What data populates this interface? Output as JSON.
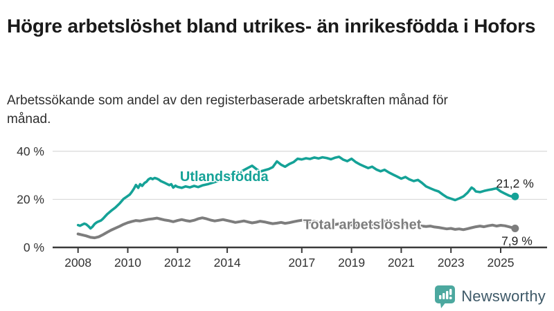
{
  "header": {
    "title": "Högre arbetslöshet bland utrikes- än inrikesfödda i Hofors",
    "subtitle": "Arbetssökande som andel av den registerbaserade arbetskraften månad för månad."
  },
  "footer": {
    "brand": "Newsworthy",
    "brand_icon": "bar-chart-speech-bubble"
  },
  "colors": {
    "accent_teal": "#15a297",
    "line_gray": "#7d7d7d",
    "axis": "#3a3a3a",
    "grid": "#d9d9d9",
    "text": "#222222",
    "brand_text": "#3e5968",
    "brand_icon": "#4ca89f"
  },
  "chart_data": {
    "type": "line",
    "title": "Högre arbetslöshet bland utrikes- än inrikesfödda i Hofors",
    "subtitle": "Arbetssökande som andel av den registerbaserade arbetskraften månad för månad.",
    "unit": "%",
    "xlim": [
      2007.6,
      2026.4
    ],
    "ylim": [
      0,
      44
    ],
    "grid": "horizontal-only",
    "legend_position": "inline-labels",
    "y_ticks": [
      [
        0,
        "0 %"
      ],
      [
        20,
        "20 %"
      ],
      [
        40,
        "40 %"
      ]
    ],
    "x_ticks": [
      [
        2008,
        "2008"
      ],
      [
        2010,
        "2010"
      ],
      [
        2012,
        "2012"
      ],
      [
        2014,
        "2014"
      ],
      [
        2017,
        "2017"
      ],
      [
        2019,
        "2019"
      ],
      [
        2021,
        "2021"
      ],
      [
        2023,
        "2023"
      ],
      [
        2025,
        "2025"
      ]
    ],
    "series": [
      {
        "name": "Utlandsfödda",
        "color": "#15a297",
        "end_value": 21.2,
        "end_label": "21,2 %",
        "label_pos": [
          2012.1,
          27.6
        ],
        "end_label_offset": [
          27,
          -13
        ],
        "points": [
          [
            2008.0,
            9.3
          ],
          [
            2008.08,
            9.0
          ],
          [
            2008.17,
            9.5
          ],
          [
            2008.25,
            9.9
          ],
          [
            2008.33,
            9.6
          ],
          [
            2008.42,
            8.8
          ],
          [
            2008.5,
            7.9
          ],
          [
            2008.58,
            8.6
          ],
          [
            2008.67,
            9.8
          ],
          [
            2008.75,
            10.4
          ],
          [
            2008.83,
            10.8
          ],
          [
            2008.92,
            11.2
          ],
          [
            2009.0,
            11.9
          ],
          [
            2009.17,
            13.8
          ],
          [
            2009.33,
            15.2
          ],
          [
            2009.5,
            16.6
          ],
          [
            2009.67,
            18.3
          ],
          [
            2009.83,
            20.2
          ],
          [
            2010.0,
            21.4
          ],
          [
            2010.08,
            22.0
          ],
          [
            2010.17,
            23.2
          ],
          [
            2010.25,
            24.5
          ],
          [
            2010.33,
            26.0
          ],
          [
            2010.42,
            24.8
          ],
          [
            2010.5,
            26.3
          ],
          [
            2010.58,
            25.6
          ],
          [
            2010.67,
            26.8
          ],
          [
            2010.75,
            27.3
          ],
          [
            2010.83,
            28.3
          ],
          [
            2010.92,
            28.8
          ],
          [
            2011.0,
            28.4
          ],
          [
            2011.08,
            28.9
          ],
          [
            2011.17,
            28.6
          ],
          [
            2011.25,
            28.2
          ],
          [
            2011.33,
            27.6
          ],
          [
            2011.5,
            26.8
          ],
          [
            2011.67,
            25.9
          ],
          [
            2011.75,
            26.3
          ],
          [
            2011.83,
            24.9
          ],
          [
            2011.92,
            25.7
          ],
          [
            2012.0,
            25.2
          ],
          [
            2012.17,
            24.8
          ],
          [
            2012.33,
            25.4
          ],
          [
            2012.5,
            25.0
          ],
          [
            2012.67,
            25.6
          ],
          [
            2012.83,
            25.1
          ],
          [
            2013.0,
            25.8
          ],
          [
            2013.25,
            26.4
          ],
          [
            2013.5,
            27.2
          ],
          [
            2013.75,
            28.1
          ],
          [
            2014.0,
            29.0
          ],
          [
            2014.25,
            30.2
          ],
          [
            2014.5,
            31.2
          ],
          [
            2014.75,
            32.6
          ],
          [
            2015.0,
            34.0
          ],
          [
            2015.17,
            32.6
          ],
          [
            2015.33,
            31.6
          ],
          [
            2015.5,
            32.1
          ],
          [
            2015.67,
            32.6
          ],
          [
            2015.83,
            33.4
          ],
          [
            2016.0,
            35.8
          ],
          [
            2016.17,
            34.4
          ],
          [
            2016.33,
            33.6
          ],
          [
            2016.5,
            34.7
          ],
          [
            2016.67,
            35.5
          ],
          [
            2016.83,
            36.9
          ],
          [
            2017.0,
            36.6
          ],
          [
            2017.17,
            37.1
          ],
          [
            2017.33,
            36.8
          ],
          [
            2017.5,
            37.4
          ],
          [
            2017.67,
            37.0
          ],
          [
            2017.83,
            37.5
          ],
          [
            2018.0,
            37.2
          ],
          [
            2018.17,
            36.7
          ],
          [
            2018.33,
            37.3
          ],
          [
            2018.5,
            37.7
          ],
          [
            2018.67,
            36.5
          ],
          [
            2018.83,
            35.9
          ],
          [
            2019.0,
            36.9
          ],
          [
            2019.17,
            35.5
          ],
          [
            2019.33,
            34.6
          ],
          [
            2019.5,
            33.8
          ],
          [
            2019.67,
            33.0
          ],
          [
            2019.83,
            33.6
          ],
          [
            2020.0,
            32.4
          ],
          [
            2020.17,
            31.7
          ],
          [
            2020.33,
            32.3
          ],
          [
            2020.5,
            31.2
          ],
          [
            2020.67,
            30.3
          ],
          [
            2020.83,
            29.5
          ],
          [
            2021.0,
            28.6
          ],
          [
            2021.17,
            29.3
          ],
          [
            2021.33,
            28.3
          ],
          [
            2021.5,
            27.6
          ],
          [
            2021.67,
            28.1
          ],
          [
            2021.83,
            26.9
          ],
          [
            2022.0,
            25.4
          ],
          [
            2022.17,
            24.6
          ],
          [
            2022.33,
            23.9
          ],
          [
            2022.5,
            23.3
          ],
          [
            2022.67,
            22.0
          ],
          [
            2022.83,
            20.9
          ],
          [
            2023.0,
            20.3
          ],
          [
            2023.17,
            19.7
          ],
          [
            2023.33,
            20.4
          ],
          [
            2023.5,
            21.2
          ],
          [
            2023.67,
            22.8
          ],
          [
            2023.83,
            24.9
          ],
          [
            2023.92,
            24.3
          ],
          [
            2024.0,
            23.3
          ],
          [
            2024.17,
            23.0
          ],
          [
            2024.33,
            23.5
          ],
          [
            2024.5,
            23.9
          ],
          [
            2024.67,
            24.2
          ],
          [
            2024.83,
            24.6
          ],
          [
            2025.0,
            23.3
          ],
          [
            2025.17,
            22.4
          ],
          [
            2025.33,
            21.6
          ],
          [
            2025.5,
            21.0
          ],
          [
            2025.58,
            21.2
          ]
        ]
      },
      {
        "name": "Total arbetslöshet",
        "color": "#7d7d7d",
        "end_value": 7.9,
        "end_label": "7,9 %",
        "label_pos": [
          2017.05,
          7.6
        ],
        "end_label_offset": [
          25,
          24
        ],
        "points": [
          [
            2008.0,
            5.6
          ],
          [
            2008.17,
            5.2
          ],
          [
            2008.33,
            4.8
          ],
          [
            2008.5,
            4.2
          ],
          [
            2008.67,
            4.0
          ],
          [
            2008.83,
            4.4
          ],
          [
            2009.0,
            5.3
          ],
          [
            2009.17,
            6.3
          ],
          [
            2009.33,
            7.2
          ],
          [
            2009.5,
            8.0
          ],
          [
            2009.67,
            8.8
          ],
          [
            2009.83,
            9.6
          ],
          [
            2010.0,
            10.3
          ],
          [
            2010.17,
            10.8
          ],
          [
            2010.33,
            11.2
          ],
          [
            2010.5,
            11.0
          ],
          [
            2010.67,
            11.4
          ],
          [
            2010.83,
            11.7
          ],
          [
            2011.0,
            11.9
          ],
          [
            2011.17,
            12.2
          ],
          [
            2011.33,
            11.8
          ],
          [
            2011.5,
            11.4
          ],
          [
            2011.67,
            11.1
          ],
          [
            2011.83,
            10.7
          ],
          [
            2012.0,
            11.2
          ],
          [
            2012.17,
            11.6
          ],
          [
            2012.33,
            11.2
          ],
          [
            2012.5,
            10.9
          ],
          [
            2012.67,
            11.3
          ],
          [
            2012.83,
            11.9
          ],
          [
            2013.0,
            12.3
          ],
          [
            2013.17,
            11.9
          ],
          [
            2013.33,
            11.4
          ],
          [
            2013.5,
            11.0
          ],
          [
            2013.67,
            11.3
          ],
          [
            2013.83,
            11.6
          ],
          [
            2014.0,
            11.2
          ],
          [
            2014.17,
            10.8
          ],
          [
            2014.33,
            10.4
          ],
          [
            2014.5,
            10.7
          ],
          [
            2014.67,
            11.0
          ],
          [
            2014.83,
            10.6
          ],
          [
            2015.0,
            10.2
          ],
          [
            2015.17,
            10.5
          ],
          [
            2015.33,
            10.9
          ],
          [
            2015.5,
            10.6
          ],
          [
            2015.67,
            10.2
          ],
          [
            2015.83,
            9.9
          ],
          [
            2016.0,
            10.1
          ],
          [
            2016.17,
            10.4
          ],
          [
            2016.33,
            10.0
          ],
          [
            2016.5,
            10.3
          ],
          [
            2016.67,
            10.7
          ],
          [
            2016.83,
            11.0
          ],
          [
            2017.0,
            11.3
          ],
          [
            2017.17,
            10.9
          ],
          [
            2017.33,
            10.5
          ],
          [
            2017.5,
            10.8
          ],
          [
            2017.67,
            10.4
          ],
          [
            2017.83,
            10.0
          ],
          [
            2018.0,
            10.2
          ],
          [
            2018.17,
            9.8
          ],
          [
            2018.33,
            9.5
          ],
          [
            2018.5,
            9.8
          ],
          [
            2018.67,
            9.4
          ],
          [
            2018.83,
            9.1
          ],
          [
            2019.0,
            9.4
          ],
          [
            2019.17,
            9.0
          ],
          [
            2019.33,
            9.3
          ],
          [
            2019.5,
            9.6
          ],
          [
            2019.67,
            9.2
          ],
          [
            2019.83,
            9.5
          ],
          [
            2020.0,
            9.8
          ],
          [
            2020.17,
            10.4
          ],
          [
            2020.33,
            10.9
          ],
          [
            2020.5,
            10.6
          ],
          [
            2020.67,
            10.2
          ],
          [
            2020.83,
            9.9
          ],
          [
            2021.0,
            10.1
          ],
          [
            2021.17,
            9.7
          ],
          [
            2021.33,
            9.4
          ],
          [
            2021.5,
            9.6
          ],
          [
            2021.67,
            9.2
          ],
          [
            2021.83,
            8.9
          ],
          [
            2022.0,
            8.7
          ],
          [
            2022.17,
            8.9
          ],
          [
            2022.33,
            8.5
          ],
          [
            2022.5,
            8.3
          ],
          [
            2022.67,
            8.0
          ],
          [
            2022.83,
            7.7
          ],
          [
            2023.0,
            7.9
          ],
          [
            2023.17,
            7.5
          ],
          [
            2023.33,
            7.7
          ],
          [
            2023.5,
            7.4
          ],
          [
            2023.67,
            7.8
          ],
          [
            2023.83,
            8.2
          ],
          [
            2024.0,
            8.6
          ],
          [
            2024.17,
            8.9
          ],
          [
            2024.33,
            8.6
          ],
          [
            2024.5,
            9.0
          ],
          [
            2024.67,
            9.3
          ],
          [
            2024.83,
            8.9
          ],
          [
            2025.0,
            9.2
          ],
          [
            2025.17,
            9.0
          ],
          [
            2025.33,
            8.6
          ],
          [
            2025.5,
            8.1
          ],
          [
            2025.58,
            7.9
          ]
        ]
      }
    ]
  }
}
